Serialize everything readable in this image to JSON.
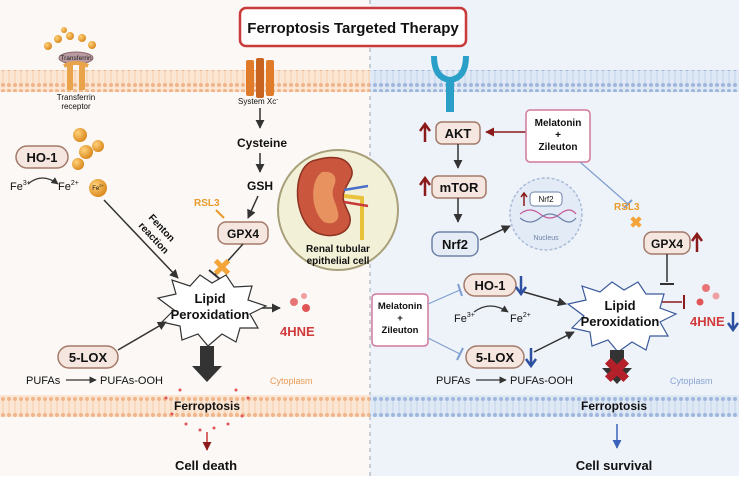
{
  "title": "Ferroptosis Targeted Therapy",
  "left": {
    "transferrin": "Transferrin",
    "transferrin_receptor_l1": "Transferrin",
    "transferrin_receptor_l2": "receptor",
    "fe_small": "Fe",
    "ho1": "HO-1",
    "fe3_base": "Fe",
    "fe3_sup": "3+",
    "fe2_base": "Fe",
    "fe2_sup": "2+",
    "fe_ball": "Fe",
    "fe_ball_sup": "2+",
    "fe_orb_sup": "3+",
    "fenton_l1": "Fenton",
    "fenton_l2": "reaction",
    "system_xc": "System Xc",
    "system_xc_sup": "-",
    "cysteine": "Cysteine",
    "gsh": "GSH",
    "rsl3": "RSL3",
    "gpx4": "GPX4",
    "lipid_l1": "Lipid",
    "lipid_l2": "Peroxidation",
    "hne": "4HNE",
    "lox": "5-LOX",
    "pufas": "PUFAs",
    "pufas_ooh": "PUFAs-OOH",
    "ferroptosis": "Ferroptosis",
    "cytoplasm": "Cytoplasm",
    "outcome": "Cell death"
  },
  "center": {
    "cell_l1": "Renal tubular",
    "cell_l2": "epithelial cell"
  },
  "right": {
    "akt": "AKT",
    "mtor": "mTOR",
    "nrf2": "Nrf2",
    "nucleus": "Nucleus",
    "nucleus_nrf2": "Nrf2",
    "drug1_l1": "Melatonin",
    "drug1_l2": "+",
    "drug1_l3": "Zileuton",
    "drug2_l1": "Melatonin",
    "drug2_l2": "+",
    "drug2_l3": "Zileuton",
    "rsl3": "RSL3",
    "gpx4": "GPX4",
    "ho1": "HO-1",
    "fe3_base": "Fe",
    "fe3_sup": "3+",
    "fe2_base": "Fe",
    "fe2_sup": "2+",
    "lipid_l1": "Lipid",
    "lipid_l2": "Peroxidation",
    "hne": "4HNE",
    "lox": "5-LOX",
    "pufas": "PUFAs",
    "pufas_ooh": "PUFAs-OOH",
    "ferroptosis": "Ferroptosis",
    "cytoplasm": "Cytoplasm",
    "outcome": "Cell survival"
  },
  "colors": {
    "title_border": "#c93a3a",
    "node_fill": "#f5e6df",
    "node_stroke": "#a37a6a",
    "up_arrow": "#8b1a1a",
    "down_arrow": "#2c4fa0",
    "inhibit_blue": "#7f9ed0",
    "membrane": "#f2c5a0",
    "right_bg": "#eef3fa",
    "hne": "#e05555",
    "orange": "#f3a53a"
  }
}
